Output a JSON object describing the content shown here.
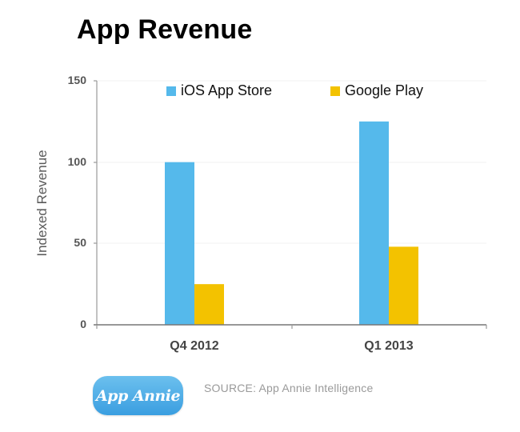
{
  "title": "App Revenue",
  "colors": {
    "ios": "#55b9eb",
    "google": "#f3c200",
    "axis": "#777777",
    "grid": "#eeeeee"
  },
  "legend": [
    {
      "label": "iOS App Store",
      "color": "#55b9eb"
    },
    {
      "label": "Google Play",
      "color": "#f3c200"
    }
  ],
  "y_axis": {
    "label": "Indexed Revenue",
    "ticks": [
      "0",
      "50",
      "100",
      "150"
    ]
  },
  "x_axis": {
    "ticks": [
      "Q4 2012",
      "Q1 2013"
    ]
  },
  "logo": {
    "text": "App Annie"
  },
  "source": "SOURCE: App Annie Intelligence",
  "chart_data": {
    "type": "bar",
    "title": "App Revenue",
    "xlabel": "",
    "ylabel": "Indexed Revenue",
    "categories": [
      "Q4 2012",
      "Q1 2013"
    ],
    "series": [
      {
        "name": "iOS App Store",
        "values": [
          100,
          125
        ],
        "color": "#55b9eb"
      },
      {
        "name": "Google Play",
        "values": [
          25,
          48
        ],
        "color": "#f3c200"
      }
    ],
    "ylim": [
      0,
      150
    ],
    "yticks": [
      0,
      50,
      100,
      150
    ],
    "grid": true,
    "legend_position": "top",
    "annotations": [
      "SOURCE: App Annie Intelligence"
    ]
  }
}
